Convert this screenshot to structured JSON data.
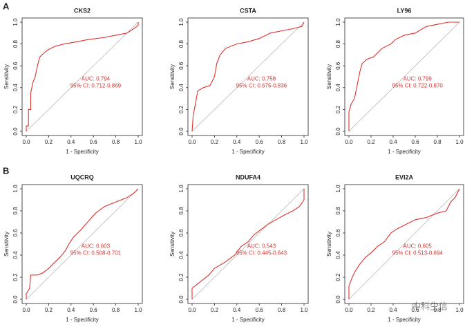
{
  "panel_labels": [
    "A",
    "B"
  ],
  "watermark": "中科生信",
  "chart_data": [
    {
      "type": "line",
      "title": "CKS2",
      "xlabel": "1 - Specificity",
      "ylabel": "Sensitivity",
      "color": "#e0302c",
      "x": [
        0,
        0,
        0.02,
        0.02,
        0.04,
        0.04,
        0.06,
        0.08,
        0.1,
        0.12,
        0.16,
        0.2,
        0.26,
        0.34,
        0.45,
        0.55,
        0.7,
        0.8,
        0.9,
        0.96,
        1,
        1
      ],
      "values": [
        0,
        0.05,
        0.05,
        0.2,
        0.2,
        0.35,
        0.45,
        0.5,
        0.6,
        0.68,
        0.72,
        0.75,
        0.78,
        0.8,
        0.82,
        0.84,
        0.86,
        0.88,
        0.9,
        0.94,
        0.97,
        1
      ],
      "diagonal": {
        "x": [
          0,
          1
        ],
        "values": [
          0,
          1
        ],
        "color": "#b0b0b0"
      },
      "annotations": [
        "AUC: 0.794",
        "95% CI: 0.712-0.869"
      ],
      "xlim": [
        0,
        1
      ],
      "ylim": [
        0,
        1
      ],
      "xticks": [
        {
          "value": 0,
          "label": "0.0"
        },
        {
          "value": 0.2,
          "label": "0.2"
        },
        {
          "value": 0.4,
          "label": "0.4"
        },
        {
          "value": 0.6,
          "label": "0.6"
        },
        {
          "value": 0.8,
          "label": "0.8"
        },
        {
          "value": 1,
          "label": "1.0"
        }
      ],
      "yticks": [
        {
          "value": 0,
          "label": "0.0"
        },
        {
          "value": 0.2,
          "label": "0.2"
        },
        {
          "value": 0.4,
          "label": "0.4"
        },
        {
          "value": 0.6,
          "label": "0.6"
        },
        {
          "value": 0.8,
          "label": "0.8"
        },
        {
          "value": 1,
          "label": "1.0"
        }
      ]
    },
    {
      "type": "line",
      "title": "CSTA",
      "xlabel": "1 - Specificity",
      "ylabel": "Sensitivity",
      "color": "#e0302c",
      "x": [
        0,
        0.01,
        0.03,
        0.05,
        0.1,
        0.16,
        0.2,
        0.22,
        0.25,
        0.3,
        0.4,
        0.5,
        0.6,
        0.7,
        0.8,
        0.9,
        0.98,
        1
      ],
      "values": [
        0,
        0.15,
        0.25,
        0.37,
        0.4,
        0.42,
        0.5,
        0.62,
        0.7,
        0.76,
        0.8,
        0.82,
        0.85,
        0.9,
        0.92,
        0.94,
        0.96,
        1
      ],
      "diagonal": {
        "x": [
          0,
          1
        ],
        "values": [
          0,
          1
        ],
        "color": "#b0b0b0"
      },
      "annotations": [
        "AUC: 0.758",
        "95% CI: 0.675-0.836"
      ],
      "xlim": [
        0,
        1
      ],
      "ylim": [
        0,
        1
      ],
      "xticks": [
        {
          "value": 0,
          "label": "0.0"
        },
        {
          "value": 0.2,
          "label": "0.2"
        },
        {
          "value": 0.4,
          "label": "0.4"
        },
        {
          "value": 0.6,
          "label": "0.6"
        },
        {
          "value": 0.8,
          "label": "0.8"
        },
        {
          "value": 1,
          "label": "1.0"
        }
      ],
      "yticks": [
        {
          "value": 0,
          "label": "0.0"
        },
        {
          "value": 0.2,
          "label": "0.2"
        },
        {
          "value": 0.4,
          "label": "0.4"
        },
        {
          "value": 0.6,
          "label": "0.6"
        },
        {
          "value": 0.8,
          "label": "0.8"
        },
        {
          "value": 1,
          "label": "1.0"
        }
      ]
    },
    {
      "type": "line",
      "title": "LY96",
      "xlabel": "1 - Specificity",
      "ylabel": "Sensitivity",
      "color": "#e0302c",
      "x": [
        0,
        0,
        0.02,
        0.05,
        0.08,
        0.1,
        0.12,
        0.16,
        0.22,
        0.26,
        0.3,
        0.38,
        0.42,
        0.5,
        0.6,
        0.7,
        0.8,
        0.9,
        1
      ],
      "values": [
        0,
        0.18,
        0.25,
        0.3,
        0.45,
        0.55,
        0.62,
        0.66,
        0.68,
        0.72,
        0.76,
        0.8,
        0.84,
        0.88,
        0.9,
        0.96,
        0.98,
        1,
        1
      ],
      "diagonal": {
        "x": [
          0,
          1
        ],
        "values": [
          0,
          1
        ],
        "color": "#b0b0b0"
      },
      "annotations": [
        "AUC: 0.799",
        "95% CI: 0.722-0.870"
      ],
      "xlim": [
        0,
        1
      ],
      "ylim": [
        0,
        1
      ],
      "xticks": [
        {
          "value": 0,
          "label": "0.0"
        },
        {
          "value": 0.2,
          "label": "0.2"
        },
        {
          "value": 0.4,
          "label": "0.4"
        },
        {
          "value": 0.6,
          "label": "0.6"
        },
        {
          "value": 0.8,
          "label": "0.8"
        },
        {
          "value": 1,
          "label": "1.0"
        }
      ],
      "yticks": [
        {
          "value": 0,
          "label": "0.0"
        },
        {
          "value": 0.2,
          "label": "0.2"
        },
        {
          "value": 0.4,
          "label": "0.4"
        },
        {
          "value": 0.6,
          "label": "0.6"
        },
        {
          "value": 0.8,
          "label": "0.8"
        },
        {
          "value": 1,
          "label": "1.0"
        }
      ]
    },
    {
      "type": "line",
      "title": "UQCRQ",
      "xlabel": "1 - Specificity",
      "ylabel": "Sensitivity",
      "color": "#e0302c",
      "x": [
        0,
        0,
        0.03,
        0.04,
        0.1,
        0.15,
        0.2,
        0.25,
        0.3,
        0.35,
        0.38,
        0.42,
        0.48,
        0.55,
        0.62,
        0.7,
        0.8,
        0.9,
        0.96,
        1
      ],
      "values": [
        0,
        0.05,
        0.1,
        0.22,
        0.22,
        0.24,
        0.28,
        0.33,
        0.38,
        0.44,
        0.5,
        0.56,
        0.62,
        0.7,
        0.78,
        0.84,
        0.88,
        0.92,
        0.96,
        1
      ],
      "diagonal": {
        "x": [
          0,
          1
        ],
        "values": [
          0,
          1
        ],
        "color": "#b0b0b0"
      },
      "annotations": [
        "AUC: 0.603",
        "95% CI: 0.508-0.701"
      ],
      "xlim": [
        0,
        1
      ],
      "ylim": [
        0,
        1
      ],
      "xticks": [
        {
          "value": 0,
          "label": "0.0"
        },
        {
          "value": 0.2,
          "label": "0.2"
        },
        {
          "value": 0.4,
          "label": "0.4"
        },
        {
          "value": 0.6,
          "label": "0.6"
        },
        {
          "value": 0.8,
          "label": "0.8"
        },
        {
          "value": 1,
          "label": "1.0"
        }
      ],
      "yticks": [
        {
          "value": 0,
          "label": "0.0"
        },
        {
          "value": 0.2,
          "label": "0.2"
        },
        {
          "value": 0.4,
          "label": "0.4"
        },
        {
          "value": 0.6,
          "label": "0.6"
        },
        {
          "value": 0.8,
          "label": "0.8"
        },
        {
          "value": 1,
          "label": "1.0"
        }
      ]
    },
    {
      "type": "line",
      "title": "NDUFA4",
      "xlabel": "1 - Specificity",
      "ylabel": "Sensitivity",
      "color": "#e0302c",
      "x": [
        0,
        0,
        0.05,
        0.1,
        0.15,
        0.2,
        0.3,
        0.38,
        0.44,
        0.5,
        0.55,
        0.6,
        0.68,
        0.75,
        0.82,
        0.9,
        0.96,
        1,
        1
      ],
      "values": [
        0,
        0.1,
        0.14,
        0.18,
        0.22,
        0.28,
        0.34,
        0.4,
        0.48,
        0.52,
        0.58,
        0.62,
        0.68,
        0.72,
        0.76,
        0.8,
        0.84,
        0.9,
        1
      ],
      "diagonal": {
        "x": [
          0,
          1
        ],
        "values": [
          0,
          1
        ],
        "color": "#b0b0b0"
      },
      "annotations": [
        "AUC: 0.543",
        "95% CI: 0.445-0.643"
      ],
      "xlim": [
        0,
        1
      ],
      "ylim": [
        0,
        1
      ],
      "xticks": [
        {
          "value": 0,
          "label": "0.0"
        },
        {
          "value": 0.2,
          "label": "0.2"
        },
        {
          "value": 0.4,
          "label": "0.4"
        },
        {
          "value": 0.6,
          "label": "0.6"
        },
        {
          "value": 0.8,
          "label": "0.8"
        },
        {
          "value": 1,
          "label": "1.0"
        }
      ],
      "yticks": [
        {
          "value": 0,
          "label": "0.0"
        },
        {
          "value": 0.2,
          "label": "0.2"
        },
        {
          "value": 0.4,
          "label": "0.4"
        },
        {
          "value": 0.6,
          "label": "0.6"
        },
        {
          "value": 0.8,
          "label": "0.8"
        },
        {
          "value": 1,
          "label": "1.0"
        }
      ]
    },
    {
      "type": "line",
      "title": "EVI2A",
      "xlabel": "1 - Specificity",
      "ylabel": "Sensitivity",
      "color": "#e0302c",
      "x": [
        0,
        0,
        0.03,
        0.06,
        0.1,
        0.15,
        0.2,
        0.26,
        0.32,
        0.38,
        0.44,
        0.52,
        0.6,
        0.7,
        0.8,
        0.88,
        0.92,
        0.96,
        1
      ],
      "values": [
        0,
        0.12,
        0.2,
        0.26,
        0.32,
        0.38,
        0.42,
        0.48,
        0.52,
        0.6,
        0.64,
        0.68,
        0.72,
        0.74,
        0.78,
        0.8,
        0.88,
        0.92,
        1
      ],
      "diagonal": {
        "x": [
          0,
          1
        ],
        "values": [
          0,
          1
        ],
        "color": "#b0b0b0"
      },
      "annotations": [
        "AUC: 0.605",
        "95% CI: 0.513-0.694"
      ],
      "xlim": [
        0,
        1
      ],
      "ylim": [
        0,
        1
      ],
      "xticks": [
        {
          "value": 0,
          "label": "0.0"
        },
        {
          "value": 0.2,
          "label": "0.2"
        },
        {
          "value": 0.4,
          "label": "0.4"
        },
        {
          "value": 0.6,
          "label": "0.6"
        },
        {
          "value": 0.8,
          "label": "0.8"
        },
        {
          "value": 1,
          "label": "1.0"
        }
      ],
      "yticks": [
        {
          "value": 0,
          "label": "0.0"
        },
        {
          "value": 0.2,
          "label": "0.2"
        },
        {
          "value": 0.4,
          "label": "0.4"
        },
        {
          "value": 0.6,
          "label": "0.6"
        },
        {
          "value": 0.8,
          "label": "0.8"
        },
        {
          "value": 1,
          "label": "1.0"
        }
      ]
    }
  ]
}
